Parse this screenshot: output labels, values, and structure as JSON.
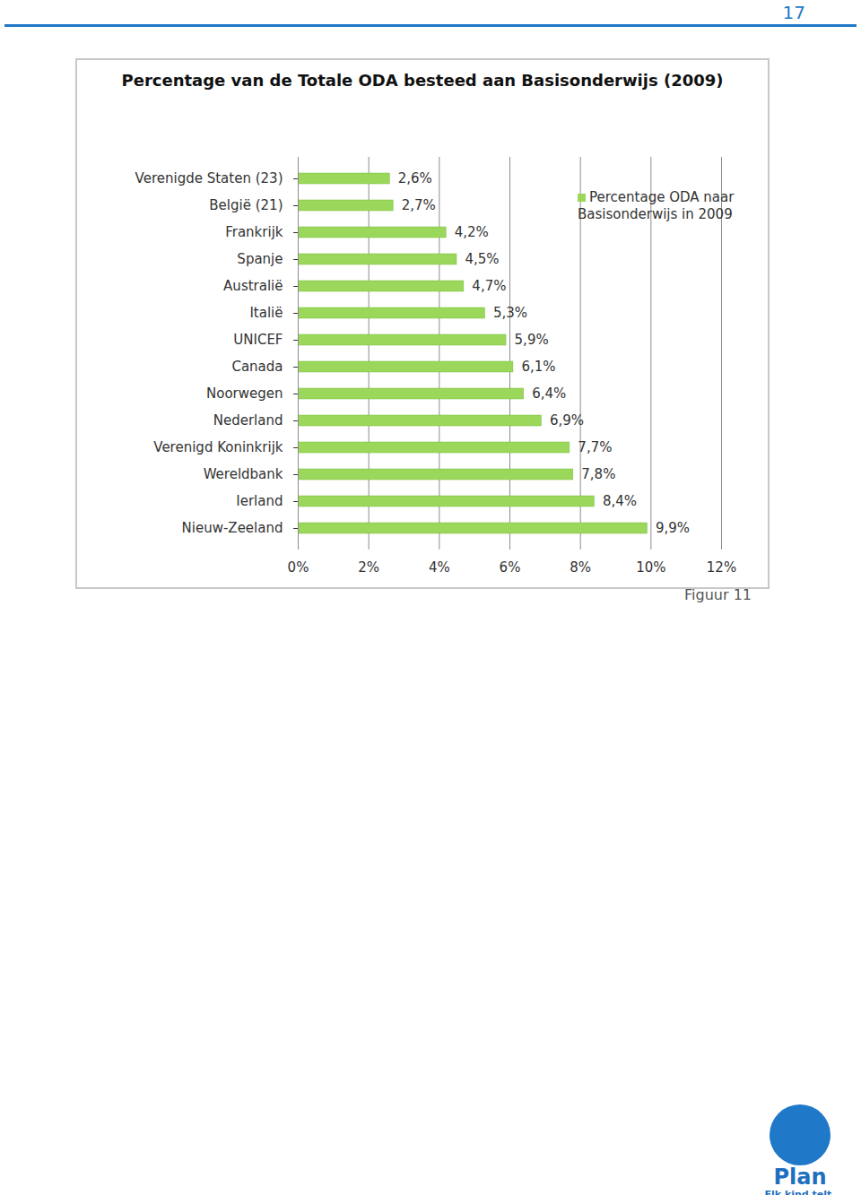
{
  "chart_data": {
    "type": "bar",
    "title": "Percentage van de Totale ODA besteed aan Basisonderwijs  (2009)",
    "caption": "Figuur 11",
    "orientation": "horizontal",
    "categories": [
      "Verenigde Staten (23)",
      "België (21)",
      "Frankrijk",
      "Spanje",
      "Australië",
      "Italië",
      "UNICEF",
      "Canada",
      "Noorwegen",
      "Nederland",
      "Verenigd Koninkrijk",
      "Wereldbank",
      "Ierland",
      "Nieuw-Zeeland"
    ],
    "series": [
      {
        "name": "Percentage ODA naar Basisonderwijs in 2009",
        "color": "#9ad75a",
        "values": [
          2.6,
          2.7,
          4.2,
          4.5,
          4.7,
          5.3,
          5.9,
          6.1,
          6.4,
          6.9,
          7.7,
          7.8,
          8.4,
          9.9
        ],
        "value_labels": [
          "2,6%",
          "2,7%",
          "4,2%",
          "4,5%",
          "4,7%",
          "5,3%",
          "5,9%",
          "6,1%",
          "6,4%",
          "6,9%",
          "7,7%",
          "7,8%",
          "8,4%",
          "9,9%"
        ]
      }
    ],
    "xlim": [
      0,
      12
    ],
    "xticks": [
      {
        "value": 0,
        "label": "0%"
      },
      {
        "value": 2,
        "label": "2%"
      },
      {
        "value": 4,
        "label": "4%"
      },
      {
        "value": 6,
        "label": "6%"
      },
      {
        "value": 8,
        "label": "8%"
      },
      {
        "value": 10,
        "label": "10%"
      },
      {
        "value": 12,
        "label": "12%"
      }
    ],
    "grid": true,
    "legend": "top-right",
    "data_labels": true
  },
  "page": {
    "number": "17",
    "logo_text": "Plan",
    "logo_tagline": "Elk kind telt."
  }
}
